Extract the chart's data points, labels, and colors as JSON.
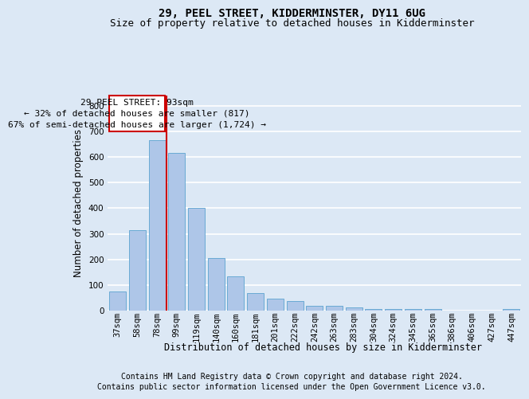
{
  "title1": "29, PEEL STREET, KIDDERMINSTER, DY11 6UG",
  "title2": "Size of property relative to detached houses in Kidderminster",
  "xlabel": "Distribution of detached houses by size in Kidderminster",
  "ylabel": "Number of detached properties",
  "categories": [
    "37sqm",
    "58sqm",
    "78sqm",
    "99sqm",
    "119sqm",
    "140sqm",
    "160sqm",
    "181sqm",
    "201sqm",
    "222sqm",
    "242sqm",
    "263sqm",
    "283sqm",
    "304sqm",
    "324sqm",
    "345sqm",
    "365sqm",
    "386sqm",
    "406sqm",
    "427sqm",
    "447sqm"
  ],
  "values": [
    75,
    315,
    665,
    615,
    400,
    205,
    135,
    70,
    47,
    37,
    20,
    20,
    12,
    7,
    7,
    5,
    5,
    0,
    0,
    0,
    7
  ],
  "bar_color": "#aec6e8",
  "bar_edge_color": "#6aaad4",
  "annotation_line1": "29 PEEL STREET: 93sqm",
  "annotation_line2": "← 32% of detached houses are smaller (817)",
  "annotation_line3": "67% of semi-detached houses are larger (1,724) →",
  "annotation_box_edge_color": "#cc0000",
  "vline_color": "#cc0000",
  "footnote1": "Contains HM Land Registry data © Crown copyright and database right 2024.",
  "footnote2": "Contains public sector information licensed under the Open Government Licence v3.0.",
  "bg_color": "#dce8f5",
  "plot_bg_color": "#dce8f5",
  "ylim_max": 840,
  "grid_color": "#ffffff",
  "title1_fontsize": 10,
  "title2_fontsize": 9,
  "tick_fontsize": 7.5,
  "annotation_fontsize": 8,
  "footnote_fontsize": 7,
  "ylabel_fontsize": 8.5,
  "xlabel_fontsize": 8.5
}
